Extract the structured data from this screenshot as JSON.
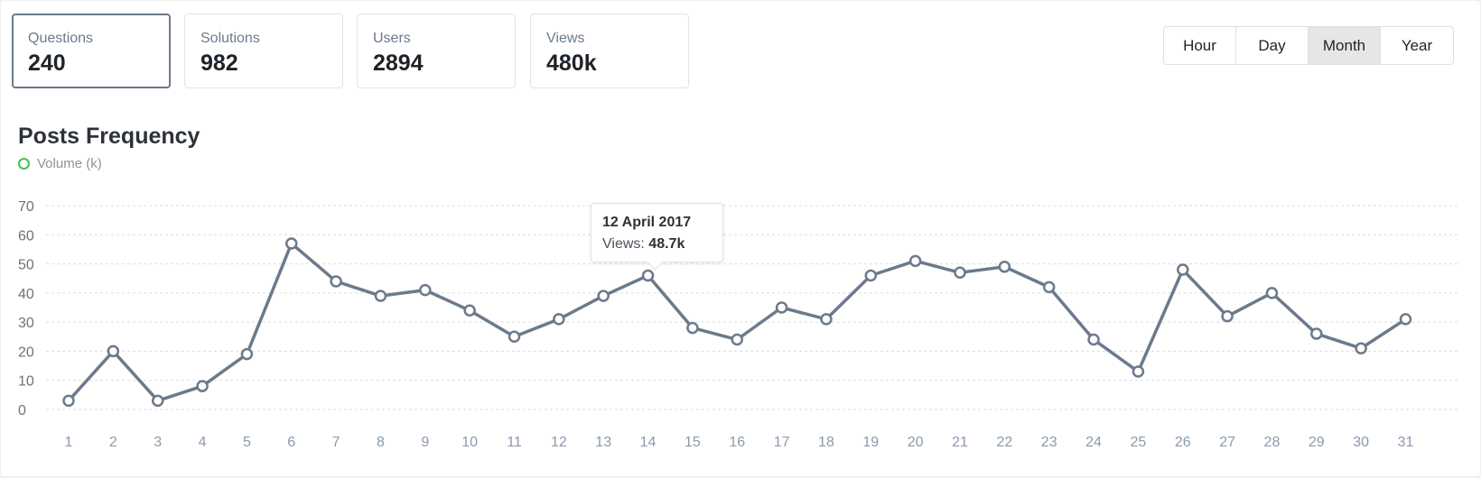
{
  "stats": [
    {
      "label": "Questions",
      "value": "240"
    },
    {
      "label": "Solutions",
      "value": "982"
    },
    {
      "label": "Users",
      "value": "2894"
    },
    {
      "label": "Views",
      "value": "480k"
    }
  ],
  "period_options": [
    "Hour",
    "Day",
    "Month",
    "Year"
  ],
  "selected_period": "Month",
  "colors": {
    "line": "#6b7a8c",
    "legend": "#3cc64f"
  },
  "chart_data": {
    "type": "line",
    "title": "Posts Frequency",
    "legend": [
      "Volume (k)"
    ],
    "x": [
      1,
      2,
      3,
      4,
      5,
      6,
      7,
      8,
      9,
      10,
      11,
      12,
      13,
      14,
      15,
      16,
      17,
      18,
      19,
      20,
      21,
      22,
      23,
      24,
      25,
      26,
      27,
      28,
      29,
      30,
      31
    ],
    "series": [
      {
        "name": "Volume (k)",
        "values": [
          3,
          20,
          3,
          8,
          19,
          57,
          44,
          39,
          41,
          34,
          25,
          31,
          39,
          46,
          28,
          24,
          35,
          31,
          46,
          51,
          47,
          49,
          42,
          24,
          13,
          48,
          32,
          40,
          26,
          21,
          31
        ]
      }
    ],
    "ylim": [
      0,
      70
    ],
    "yticks": [
      0,
      10,
      20,
      30,
      40,
      50,
      60,
      70
    ],
    "grid": true,
    "legend_position": "top-left"
  },
  "tooltip": {
    "date": "12 April 2017",
    "label": "Views:",
    "value": "48.7k"
  }
}
